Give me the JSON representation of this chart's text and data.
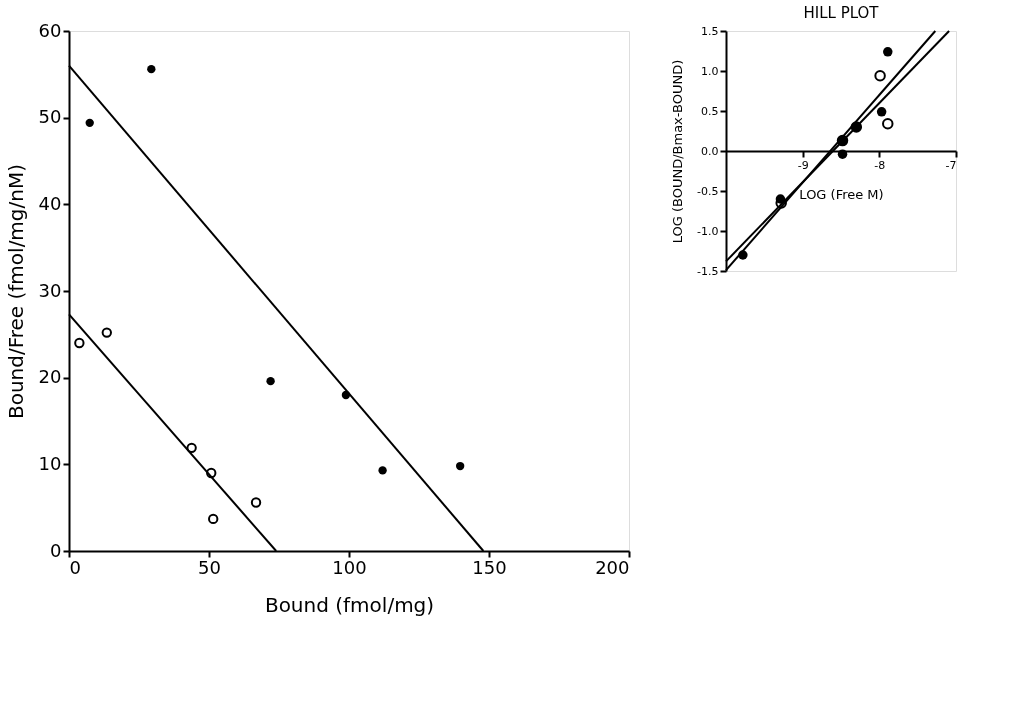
{
  "chart_data": [
    {
      "type": "scatter",
      "xlabel": "Bound (fmol/mg)",
      "ylabel": "Bound/Free (fmol/mg/nM)",
      "xlim": [
        0,
        200
      ],
      "ylim": [
        0,
        60
      ],
      "xticks": [
        0,
        50,
        100,
        150,
        200
      ],
      "yticks": [
        0,
        10,
        20,
        30,
        40,
        50,
        60
      ],
      "grid": false,
      "series": [
        {
          "color": "#000000",
          "marker": "circle",
          "x": [
            7.4,
            29.4,
            72,
            98.9,
            112,
            139.7
          ],
          "values": [
            49.4,
            55.6,
            19.6,
            18.0,
            9.3,
            9.8
          ]
        },
        {
          "color": "#000000",
          "marker": "circle",
          "x": [
            3.7,
            13.5,
            43.8,
            50.8,
            51.5,
            66.8
          ],
          "values": [
            24.0,
            25.2,
            11.9,
            9.0,
            3.7,
            5.6
          ]
        },
        {
          "type": "line",
          "color": "#000000",
          "x": [
            0,
            148
          ],
          "values": [
            56,
            0
          ]
        },
        {
          "type": "line",
          "color": "#000000",
          "x": [
            0,
            74
          ],
          "values": [
            27.3,
            0
          ]
        }
      ]
    },
    {
      "type": "scatter",
      "title": "HILL PLOT",
      "xlabel": "LOG (Free M)",
      "ylabel": "LOG (BOUND/Bmax-BOUND)",
      "xlim": [
        -10,
        -7
      ],
      "ylim": [
        -1.5,
        1.5
      ],
      "xticks": [
        -9,
        -8,
        -7
      ],
      "yticks": [
        {
          "value": -1.5,
          "label": "-1.5"
        },
        {
          "value": -1,
          "label": "-1.0"
        },
        {
          "value": -0.5,
          "label": "-0.5"
        },
        {
          "value": 0,
          "label": "0.0"
        },
        {
          "value": 0.5,
          "label": "0.5"
        },
        {
          "value": 1,
          "label": "1.0"
        },
        {
          "value": 1.5,
          "label": "1.5"
        }
      ],
      "grid": false,
      "series": [
        {
          "color": "#000000",
          "marker": "circle",
          "x": [
            -9.78,
            -9.29,
            -8.48,
            -8.48,
            -8.3,
            -7.97,
            -7.89
          ],
          "values": [
            -1.3,
            -0.6,
            -0.04,
            0.13,
            0.3,
            0.49,
            1.24
          ]
        },
        {
          "color": "#000000",
          "marker": "circle",
          "x": [
            -9.28,
            -8.48,
            -8.3,
            -7.99,
            -7.89
          ],
          "values": [
            -0.65,
            0.13,
            0.3,
            0.94,
            0.34
          ]
        },
        {
          "type": "line",
          "color": "#000000",
          "x": [
            -10,
            -7.27
          ],
          "values": [
            -1.49,
            1.5
          ]
        },
        {
          "type": "line",
          "color": "#000000",
          "x": [
            -10,
            -7.09
          ],
          "values": [
            -1.38,
            1.5
          ]
        }
      ]
    }
  ]
}
